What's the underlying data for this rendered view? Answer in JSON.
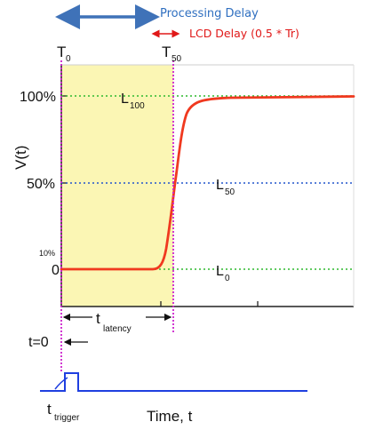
{
  "annotations": {
    "processing_delay": "Processing Delay",
    "lcd_delay": "LCD Delay (0.5 * Tr)"
  },
  "time_markers": {
    "t0_main": "T",
    "t0_sub": "0",
    "t50_main": "T",
    "t50_sub": "50"
  },
  "y_axis": {
    "title": "V(t)",
    "ticks": [
      "100%",
      "50%",
      "10%",
      "0"
    ]
  },
  "levels": {
    "l100_main": "L",
    "l100_sub": "100",
    "l50_main": "L",
    "l50_sub": "50",
    "l0_main": "L",
    "l0_sub": "0"
  },
  "latency": {
    "main": "t",
    "sub": "latency",
    "t_zero": "t=0"
  },
  "trigger": {
    "main": "t",
    "sub": "trigger"
  },
  "x_axis": {
    "title": "Time, t"
  },
  "colors": {
    "shade": "#fbf6b4",
    "response_curve": "#f0391f",
    "level_green": "#2eb82e",
    "level_blue": "#2255cc",
    "marker_magenta": "#cc22cc",
    "arrow_blue": "#3f72b8",
    "arrow_red": "#e01818",
    "trigger_blue": "#1f3fe0"
  }
}
